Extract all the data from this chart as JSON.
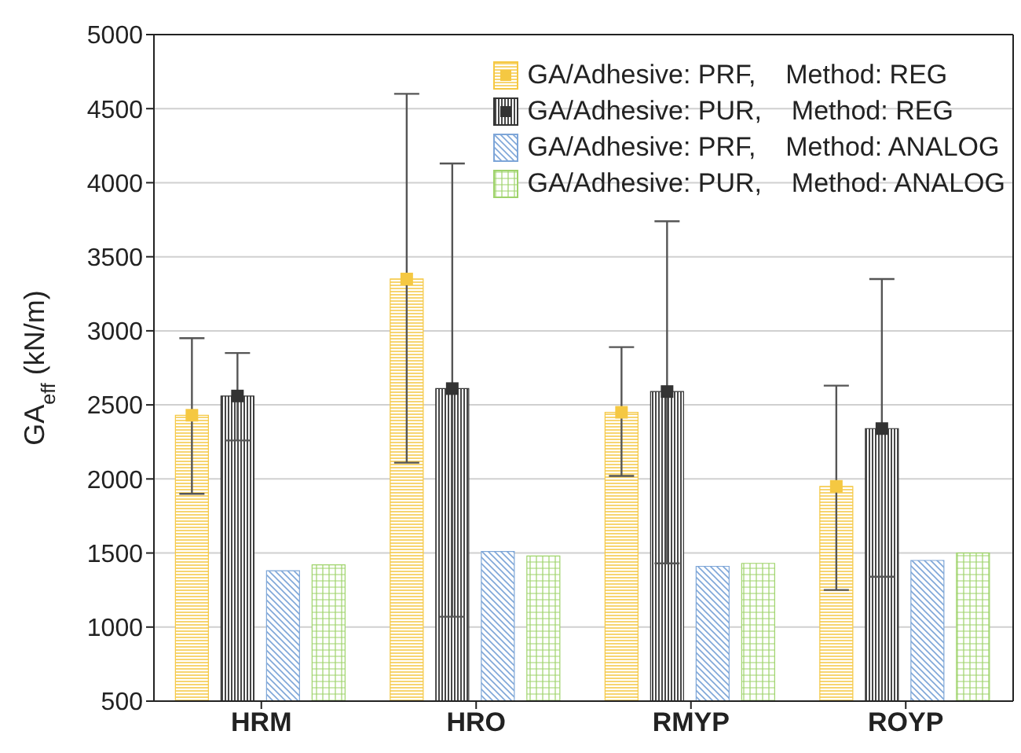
{
  "chart_data": {
    "type": "bar",
    "ylabel": "GA$_{eff}$ (kN/m)",
    "categories": [
      "HRM",
      "HRO",
      "RMYP",
      "ROYP"
    ],
    "series": [
      {
        "name": "GA/Adhesive: PRF,    Method: REG",
        "color": "#f5c842",
        "marker": "square",
        "values": [
          2430,
          3350,
          2450,
          1950
        ],
        "errors": [
          [
            1900,
            2950
          ],
          [
            2110,
            4600
          ],
          [
            2020,
            2890
          ],
          [
            1250,
            2630
          ]
        ]
      },
      {
        "name": "GA/Adhesive: PUR,    Method: REG",
        "color": "#333333",
        "marker": "square",
        "values": [
          2560,
          2610,
          2590,
          2340
        ],
        "errors": [
          [
            2260,
            2850
          ],
          [
            1070,
            4130
          ],
          [
            1430,
            3740
          ],
          [
            1340,
            3350
          ]
        ]
      },
      {
        "name": "GA/Adhesive: PRF,    Method: ANALOG",
        "color": "#7ea6d8",
        "values": [
          1380,
          1510,
          1410,
          1450
        ]
      },
      {
        "name": "GA/Adhesive: PUR,    Method: ANALOG",
        "color": "#9ed36a",
        "values": [
          1420,
          1480,
          1430,
          1500
        ]
      }
    ],
    "ylim": [
      500,
      5000
    ],
    "yticks": [
      500,
      1000,
      1500,
      2000,
      2500,
      3000,
      3500,
      4000,
      4500,
      5000
    ],
    "grid": "y",
    "legend": "top right"
  }
}
